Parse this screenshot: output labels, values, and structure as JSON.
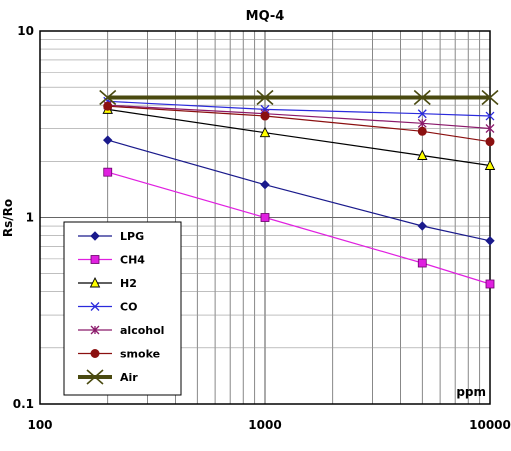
{
  "chart_data": {
    "type": "line",
    "title": "MQ-4",
    "xlabel": "ppm",
    "ylabel": "Rs/Ro",
    "xscale": "log",
    "yscale": "log",
    "xlim": [
      100,
      10000
    ],
    "ylim": [
      0.1,
      10
    ],
    "x_ticks": [
      "100",
      "1000",
      "10000"
    ],
    "y_ticks": [
      "0.1",
      "1",
      "10"
    ],
    "grid": true,
    "legend_position": "bottom-left",
    "series": [
      {
        "name": "LPG",
        "color": "#1a1a8c",
        "marker": "diamond",
        "x": [
          200,
          1000,
          5000,
          10000
        ],
        "y": [
          2.6,
          1.5,
          0.9,
          0.75
        ]
      },
      {
        "name": "CH4",
        "color": "#e020e0",
        "marker": "square",
        "x": [
          200,
          1000,
          5000,
          10000
        ],
        "y": [
          1.75,
          1.0,
          0.57,
          0.44
        ]
      },
      {
        "name": "H2",
        "color": "#000000",
        "marker": "triangle",
        "x": [
          200,
          1000,
          5000,
          10000
        ],
        "y": [
          3.8,
          2.85,
          2.15,
          1.9
        ]
      },
      {
        "name": "CO",
        "color": "#2a2adc",
        "marker": "x",
        "x": [
          200,
          1000,
          5000,
          10000
        ],
        "y": [
          4.2,
          3.8,
          3.6,
          3.5
        ]
      },
      {
        "name": "alcohol",
        "color": "#8b1a6b",
        "marker": "star",
        "x": [
          200,
          1000,
          5000,
          10000
        ],
        "y": [
          4.0,
          3.6,
          3.2,
          3.0
        ]
      },
      {
        "name": "smoke",
        "color": "#8b1010",
        "marker": "circle",
        "x": [
          200,
          1000,
          5000,
          10000
        ],
        "y": [
          3.95,
          3.5,
          2.9,
          2.55
        ]
      },
      {
        "name": "Air",
        "color": "#4a4a10",
        "marker": "bigx",
        "x": [
          200,
          1000,
          5000,
          10000
        ],
        "y": [
          4.4,
          4.4,
          4.4,
          4.4
        ]
      }
    ]
  }
}
